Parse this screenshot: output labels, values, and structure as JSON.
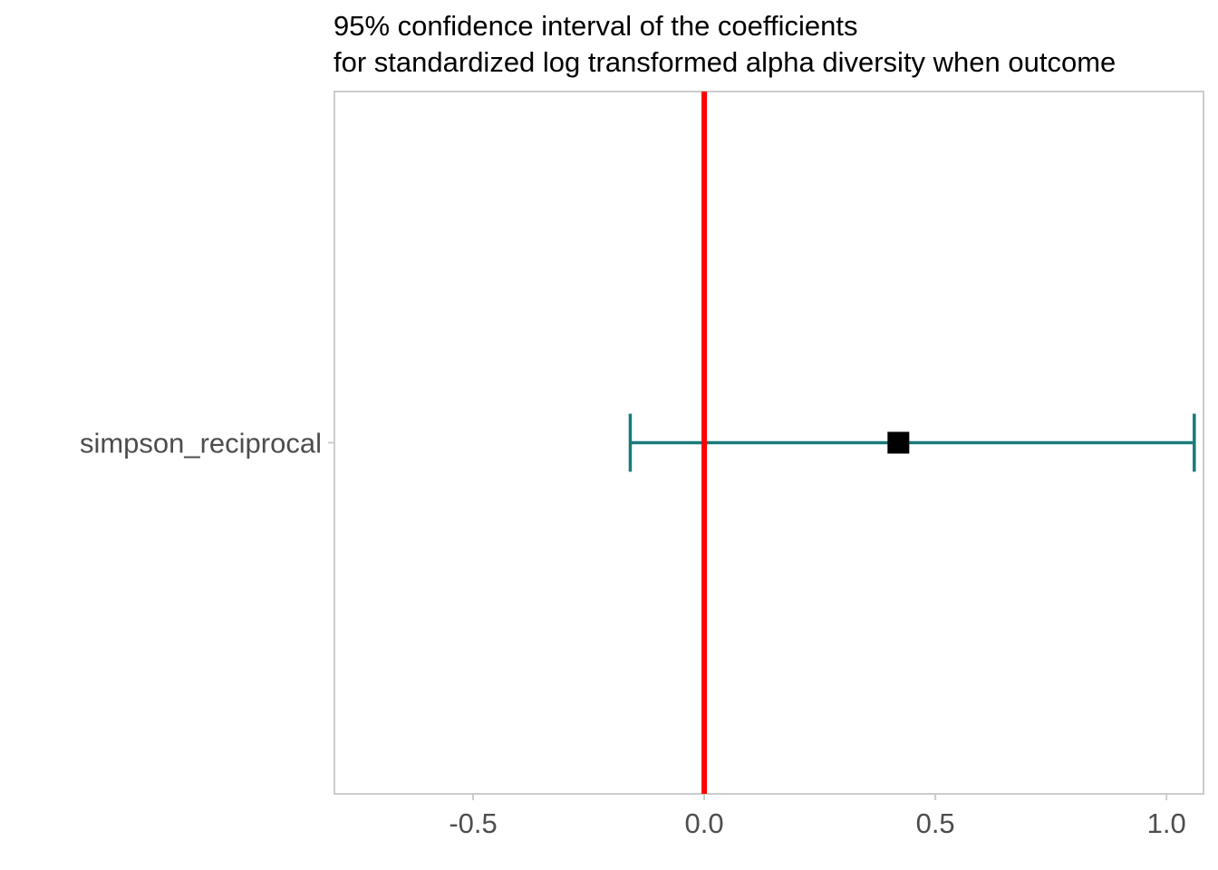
{
  "chart_data": {
    "type": "errorbar",
    "title_lines": [
      "95% confidence interval of the coefficients",
      "for standardized log transformed alpha diversity when outcome"
    ],
    "xlabel": "",
    "ylabel": "",
    "xlim": [
      -0.8,
      1.08
    ],
    "x_ticks": [
      -0.5,
      0.0,
      0.5,
      1.0
    ],
    "x_tick_labels": [
      "-0.5",
      "0.0",
      "0.5",
      "1.0"
    ],
    "categories": [
      "simpson_reciprocal"
    ],
    "points": [
      {
        "category": "simpson_reciprocal",
        "estimate": 0.42,
        "lower": -0.16,
        "upper": 1.06
      }
    ],
    "reference_line": {
      "x": 0.0,
      "color": "#ff0000"
    },
    "colors": {
      "interval": "#1a7a7a",
      "estimate": "#000000",
      "panel_border": "#cccccc",
      "tick_text": "#4d4d4d"
    },
    "grid": false,
    "legend": "none"
  }
}
